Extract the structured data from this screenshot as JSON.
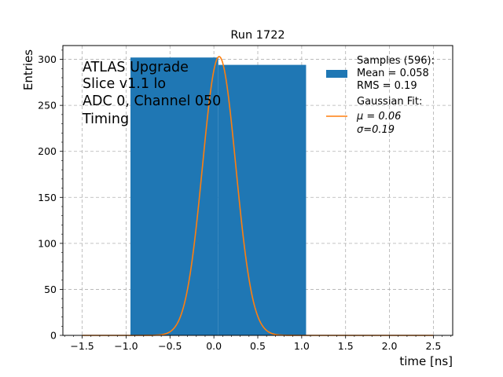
{
  "chart_data": {
    "type": "bar",
    "title": "Run 1722",
    "xlabel": "time [ns]",
    "ylabel": "Entries",
    "xlim": [
      -1.72,
      2.72
    ],
    "ylim": [
      0,
      315
    ],
    "xticks": [
      -1.5,
      -1.0,
      -0.5,
      0.0,
      0.5,
      1.0,
      1.5,
      2.0,
      2.5
    ],
    "xtick_labels": [
      "−1.5",
      "−1.0",
      "−0.5",
      "0.0",
      "0.5",
      "1.0",
      "1.5",
      "2.0",
      "2.5"
    ],
    "yticks": [
      0,
      50,
      100,
      150,
      200,
      250,
      300
    ],
    "ytick_labels": [
      "0",
      "50",
      "100",
      "150",
      "200",
      "250",
      "300"
    ],
    "grid": true,
    "bins": [
      {
        "x0": -0.95,
        "x1": 0.05,
        "count": 302
      },
      {
        "x0": 0.05,
        "x1": 1.05,
        "count": 294
      }
    ],
    "fit": {
      "type": "gaussian",
      "mu": 0.06,
      "sigma": 0.19,
      "amplitude": 303,
      "range": [
        -1.5,
        2.5
      ]
    },
    "colors": {
      "histogram": "#1f77b4",
      "fit": "#ff7f0e",
      "grid": "#b0b0b0"
    },
    "annotation": [
      "ATLAS Upgrade",
      "Slice v1.1 lo",
      "ADC 0, Channel 050",
      "Timing"
    ],
    "legend": {
      "placement": "top-right",
      "samples": {
        "title": "Samples (596):",
        "mean": " Mean = 0.058",
        "rms": " RMS = 0.19"
      },
      "fit": {
        "title": "Gaussian Fit:",
        "mu": " μ = 0.06",
        "sigma": " σ=0.19"
      }
    }
  }
}
